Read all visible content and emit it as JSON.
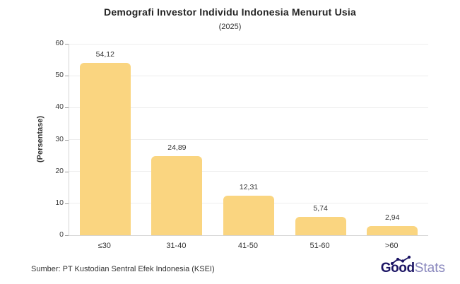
{
  "chart_data": {
    "type": "bar",
    "title": "Demografi Investor Individu Indonesia Menurut Usia",
    "subtitle": "(2025)",
    "categories": [
      "≤30",
      "31-40",
      "41-50",
      "51-60",
      ">60"
    ],
    "values": [
      54.12,
      24.89,
      12.31,
      5.74,
      2.94
    ],
    "value_labels": [
      "54,12",
      "24,89",
      "12,31",
      "5,74",
      "2,94"
    ],
    "xlabel": "",
    "ylabel": "(Persentase)",
    "ylim": [
      0,
      60
    ],
    "yticks": [
      0,
      10,
      20,
      30,
      40,
      50,
      60
    ],
    "grid": true,
    "legend": "none",
    "bar_color": "#FAD580",
    "gridline_color": "#EDEDED",
    "axis_color": "#D4D4D4"
  },
  "footer": {
    "source": "Sumber: PT Kustodian Sentral Efek Indonesia (KSEI)",
    "logo": {
      "bold": "Good",
      "light": "Stats",
      "bold_color": "#1B1464",
      "light_color": "#8987BD"
    }
  }
}
